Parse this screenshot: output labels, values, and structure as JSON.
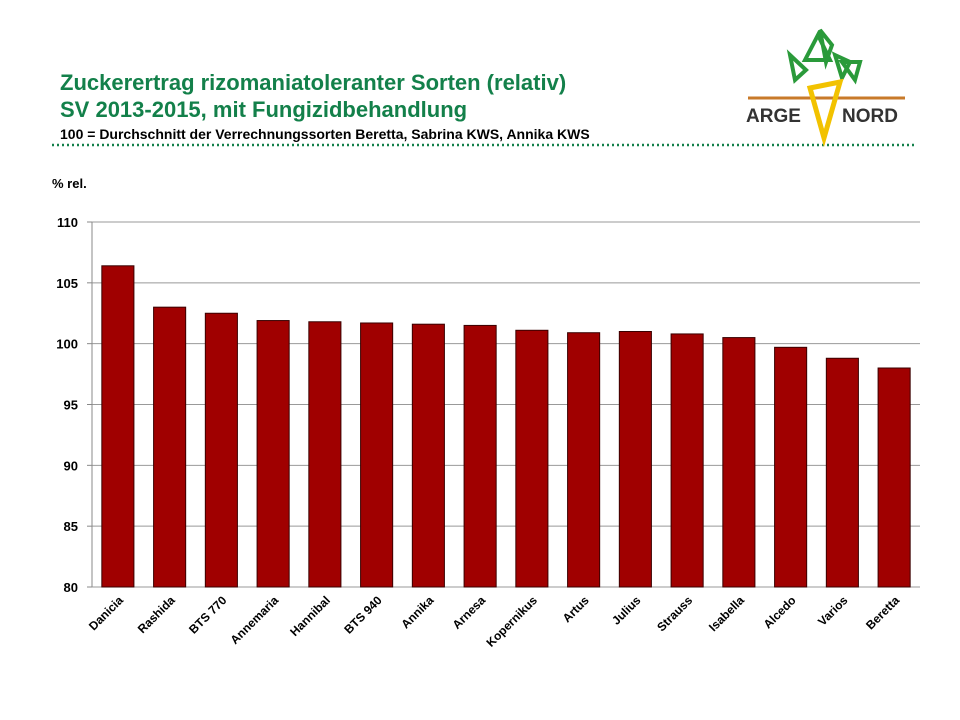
{
  "chart_data": {
    "type": "bar",
    "title": "Zuckerertrag rizomaniatoleranter Sorten (relativ)",
    "subtitle": "SV 2013-2015, mit Fungizidbehandlung",
    "note": "100 = Durchschnitt der Verrechnungssorten Beretta, Sabrina KWS, Annika KWS",
    "y_label": "% rel.",
    "categories": [
      "Danicia",
      "Rashida",
      "BTS 770",
      "Annemaria",
      "Hannibal",
      "BTS 940",
      "Annika",
      "Arnesa",
      "Kopernikus",
      "Artus",
      "Julius",
      "Strauss",
      "Isabella",
      "Alcedo",
      "Varios",
      "Beretta"
    ],
    "values": [
      106.4,
      103.0,
      102.5,
      101.9,
      101.8,
      101.7,
      101.6,
      101.5,
      101.1,
      100.9,
      101.0,
      100.8,
      100.5,
      99.7,
      98.8,
      98.0
    ],
    "color": "#a00000",
    "ylim": [
      80,
      110
    ],
    "yticks": [
      80,
      85,
      90,
      95,
      100,
      105,
      110
    ],
    "grid": true
  },
  "logo": {
    "left": "ARGE",
    "right": "NORD"
  }
}
